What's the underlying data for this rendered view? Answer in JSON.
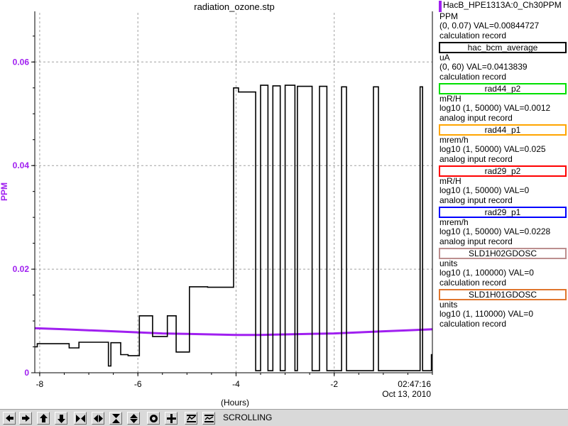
{
  "chart_data": {
    "type": "line",
    "title": "radiation_ozone.stp",
    "xlabel": "(Hours)",
    "ylabel": "PPM",
    "xlim": [
      -8.1,
      0.0
    ],
    "ylim": [
      0,
      0.0695
    ],
    "x_ticks": [
      -8,
      -6,
      -4,
      -2
    ],
    "x_tick_labels": [
      "-8",
      "-6",
      "-4",
      "-2"
    ],
    "end_time": "02:47:16",
    "end_date": "Oct 13, 2010",
    "y_ticks": [
      0,
      0.02,
      0.04,
      0.06
    ],
    "y_tick_labels": [
      "0",
      "0.02",
      "0.04",
      "0.06"
    ],
    "grid": true,
    "legend_placement": "right",
    "series": [
      {
        "name": "HacB_HPE1313A:0_Ch30PPM",
        "color": "#a020f0",
        "x": [
          -8.1,
          -7.5,
          -7.0,
          -6.5,
          -6.0,
          -5.5,
          -5.0,
          -4.5,
          -4.0,
          -3.5,
          -3.0,
          -2.5,
          -2.0,
          -1.5,
          -1.0,
          -0.5,
          0.0
        ],
        "values": [
          0.0086,
          0.0084,
          0.0082,
          0.008,
          0.0078,
          0.0076,
          0.0075,
          0.0074,
          0.0073,
          0.0073,
          0.0074,
          0.0075,
          0.0076,
          0.0078,
          0.008,
          0.0082,
          0.0084
        ]
      },
      {
        "name": "hac_bcm_average",
        "color": "#000000",
        "x": [
          -8.1,
          -8.05,
          -8.05,
          -7.4,
          -7.4,
          -7.2,
          -7.2,
          -6.85,
          -6.85,
          -6.6,
          -6.6,
          -6.55,
          -6.55,
          -6.35,
          -6.35,
          -6.2,
          -6.2,
          -5.97,
          -5.97,
          -5.7,
          -5.7,
          -5.4,
          -5.4,
          -5.22,
          -5.22,
          -4.95,
          -4.95,
          -4.88,
          -4.88,
          -4.58,
          -4.58,
          -4.05,
          -4.05,
          -3.95,
          -3.95,
          -3.6,
          -3.6,
          -3.5,
          -3.5,
          -3.35,
          -3.35,
          -3.25,
          -3.25,
          -3.1,
          -3.1,
          -3.0,
          -3.0,
          -2.8,
          -2.8,
          -2.75,
          -2.75,
          -2.45,
          -2.45,
          -2.3,
          -2.3,
          -2.15,
          -2.15,
          -1.85,
          -1.85,
          -1.75,
          -1.75,
          -1.2,
          -1.2,
          -1.1,
          -1.1,
          -0.25,
          -0.25,
          -0.2,
          -0.2,
          -0.02,
          -0.02,
          0.0
        ],
        "values": [
          0.005,
          0.005,
          0.0056,
          0.0056,
          0.0048,
          0.0048,
          0.0059,
          0.0059,
          0.0059,
          0.0059,
          0.0013,
          0.0013,
          0.0058,
          0.0058,
          0.0035,
          0.0035,
          0.0033,
          0.0033,
          0.011,
          0.011,
          0.007,
          0.007,
          0.011,
          0.011,
          0.004,
          0.004,
          0.0166,
          0.0166,
          0.0166,
          0.0166,
          0.0165,
          0.0165,
          0.055,
          0.055,
          0.0542,
          0.0542,
          0.0004,
          0.0004,
          0.0555,
          0.0555,
          0.0004,
          0.0004,
          0.0554,
          0.0554,
          0.0004,
          0.0004,
          0.0555,
          0.0555,
          0.0004,
          0.0004,
          0.0553,
          0.0553,
          0.0004,
          0.0004,
          0.0553,
          0.0553,
          0.0004,
          0.0004,
          0.0552,
          0.0552,
          0.0004,
          0.0004,
          0.0552,
          0.0552,
          0.0004,
          0.0004,
          0.0552,
          0.0552,
          0.0004,
          0.0004,
          0.0035,
          0.0035
        ]
      },
      {
        "name": "rad44_p2",
        "color": "#00e000",
        "values": []
      },
      {
        "name": "rad44_p1",
        "color": "#ffa500",
        "values": []
      },
      {
        "name": "rad29_p2",
        "color": "#ff0000",
        "values": []
      },
      {
        "name": "rad29_p1",
        "color": "#0000ff",
        "values": []
      },
      {
        "name": "SLD1H02GDOSC",
        "color": "#bc8f8f",
        "values": []
      },
      {
        "name": "SLD1H01GDOSC",
        "color": "#e0762e",
        "values": []
      }
    ]
  },
  "legend": [
    {
      "name": "HacB_HPE1313A:0_Ch30PPM",
      "color": "#a020f0",
      "units": "PPM",
      "range": "(0, 0.07) VAL=0.00844727",
      "record": "calculation record"
    },
    {
      "name": "hac_bcm_average",
      "color": "#000000",
      "units": "uA",
      "range": "(0, 60) VAL=0.0413839",
      "record": "calculation record"
    },
    {
      "name": "rad44_p2",
      "color": "#00e000",
      "units": "mR/H",
      "range": "log10 (1, 50000) VAL=0.0012",
      "record": "analog input record"
    },
    {
      "name": "rad44_p1",
      "color": "#ffa500",
      "units": "mrem/h",
      "range": "log10 (1, 50000) VAL=0.025",
      "record": "analog input record"
    },
    {
      "name": "rad29_p2",
      "color": "#ff0000",
      "units": "mR/H",
      "range": "log10 (1, 50000) VAL=0",
      "record": "analog input record"
    },
    {
      "name": "rad29_p1",
      "color": "#0000ff",
      "units": "mrem/h",
      "range": "log10 (1, 50000) VAL=0.0228",
      "record": "analog input record"
    },
    {
      "name": "SLD1H02GDOSC",
      "color": "#bc8f8f",
      "units": "units",
      "range": "log10 (1, 100000) VAL=0",
      "record": "calculation record"
    },
    {
      "name": "SLD1H01GDOSC",
      "color": "#e0762e",
      "units": "units",
      "range": "log10 (1, 110000) VAL=0",
      "record": "calculation record"
    }
  ],
  "toolbar": {
    "buttons": [
      {
        "name": "scroll-left-button",
        "icon": "arrow-left-icon"
      },
      {
        "name": "scroll-right-button",
        "icon": "arrow-right-icon"
      },
      {
        "name": "scroll-up-button",
        "icon": "arrow-up-icon"
      },
      {
        "name": "scroll-down-button",
        "icon": "arrow-down-icon"
      },
      {
        "name": "zoom-in-x-button",
        "icon": "zoom-in-x-icon"
      },
      {
        "name": "zoom-out-x-button",
        "icon": "zoom-out-x-icon"
      },
      {
        "name": "zoom-in-y-button",
        "icon": "zoom-in-y-icon"
      },
      {
        "name": "zoom-out-y-button",
        "icon": "zoom-out-y-icon"
      },
      {
        "name": "stop-button",
        "icon": "stop-icon"
      },
      {
        "name": "crosshair-button",
        "icon": "crosshair-icon"
      },
      {
        "name": "auto-scale-button",
        "icon": "auto-scale-icon"
      },
      {
        "name": "scroll-mode-button",
        "icon": "scroll-mode-icon"
      }
    ],
    "status": "SCROLLING"
  },
  "colors": {
    "axis_label": "#a020f0",
    "grid": "#a0a0a0",
    "toolbar_bg": "#d9d9d9"
  }
}
